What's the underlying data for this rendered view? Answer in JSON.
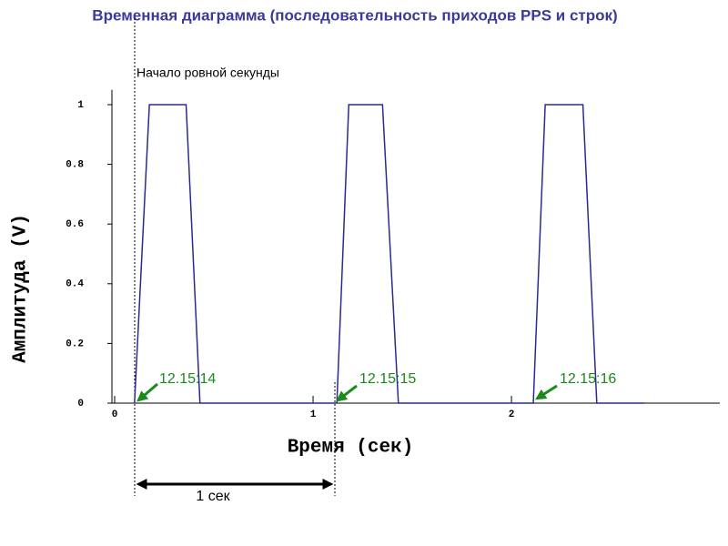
{
  "chart_data": {
    "type": "line",
    "title": "Временная диаграмма (последовательность приходов PPS и строк)",
    "x_label": "Время (сек)",
    "y_label": "Амплитуда (V)",
    "x": [
      0.1,
      0.175,
      0.36,
      0.43,
      1.12,
      1.18,
      1.35,
      1.43,
      2.11,
      2.17,
      2.36,
      2.43,
      2.67
    ],
    "series": [
      {
        "color": "#2b2b8f",
        "values": [
          0,
          1,
          1,
          0,
          0,
          1,
          1,
          0,
          0,
          1,
          1,
          0,
          0
        ]
      }
    ],
    "xlim": [
      0,
      3.05
    ],
    "xticks": [
      0,
      1,
      2
    ],
    "ylim": [
      0,
      1.05
    ],
    "yticks": [
      0,
      0.2,
      0.4,
      0.6,
      0.8,
      1
    ],
    "annotations": [
      "Начало ровной секунды",
      "12.15:14",
      "12.15:15",
      "12.15:16",
      "1 сек"
    ]
  }
}
